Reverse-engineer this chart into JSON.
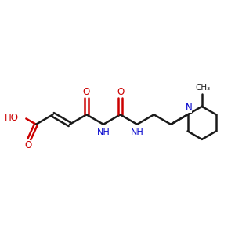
{
  "bg_color": "#ffffff",
  "red": "#cc0000",
  "blue": "#0000cc",
  "black": "#1a1a1a",
  "lw": 1.8,
  "fs": 8.5,
  "figsize": [
    3.0,
    3.0
  ],
  "dpi": 100,
  "xlim": [
    0,
    10
  ],
  "ylim": [
    0,
    10
  ]
}
